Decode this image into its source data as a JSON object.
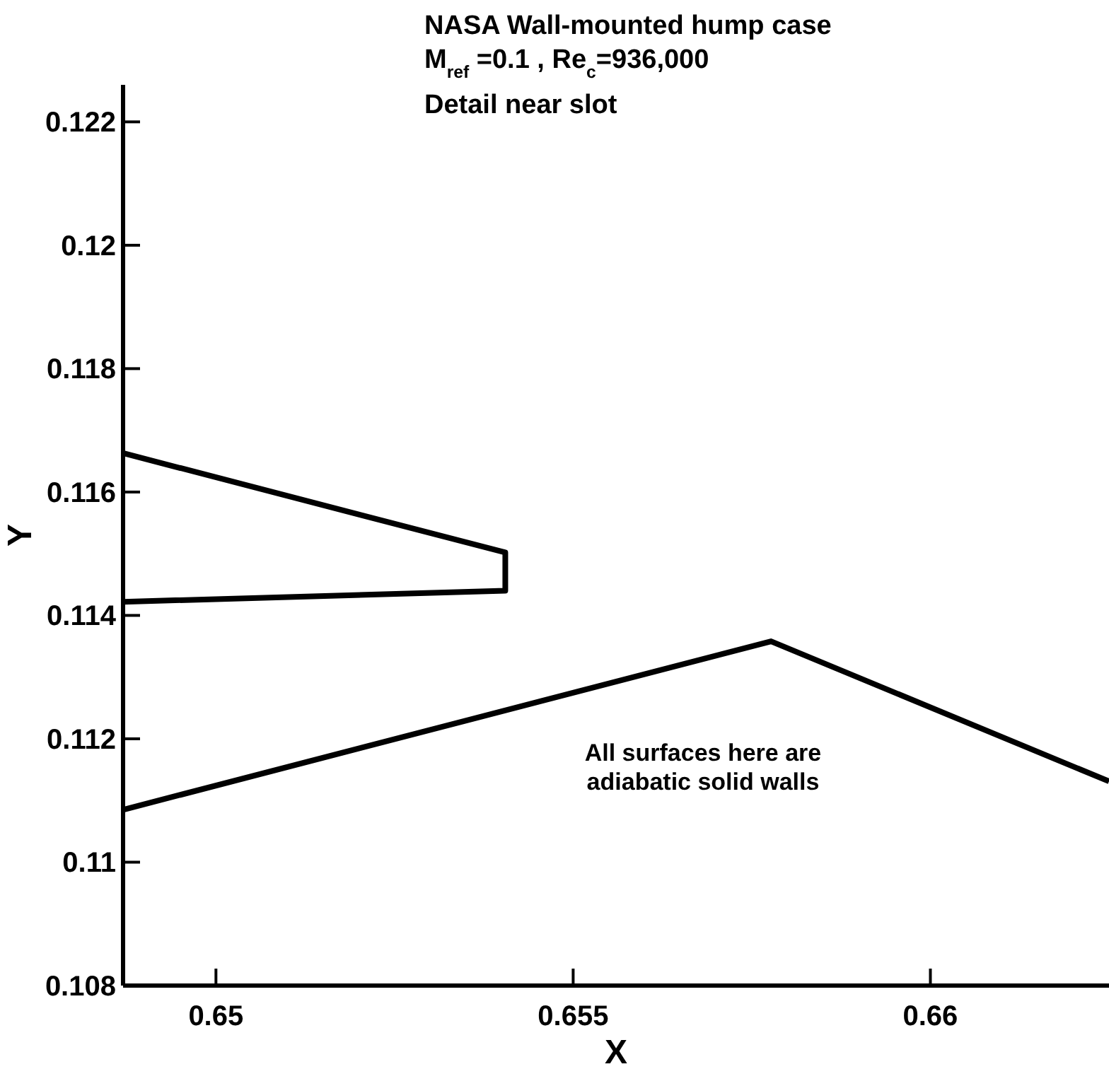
{
  "chart_data": {
    "type": "line",
    "title": "NASA Wall-mounted hump case",
    "subtitle": "M$_{ref}$ =0.1 , Re$_{c}$=936,000",
    "xlabel": "X",
    "ylabel": "Y",
    "annotations": [
      "Detail near slot",
      "All surfaces here are adiabatic solid walls"
    ],
    "xlim": [
      0.6487,
      0.6625
    ],
    "ylim": [
      0.108,
      0.1226
    ],
    "xticks": [
      0.65,
      0.655,
      0.66
    ],
    "yticks": [
      0.108,
      0.11,
      0.112,
      0.114,
      0.116,
      0.118,
      0.12,
      0.122
    ],
    "series": [
      {
        "color": "#000000",
        "x": [
          0.6487,
          0.65405,
          0.65405,
          0.6487
        ],
        "values": [
          0.11663,
          0.11502,
          0.1144,
          0.11422
        ]
      },
      {
        "color": "#000000",
        "x": [
          0.6487,
          0.65777,
          0.6625
        ],
        "values": [
          0.11085,
          0.11358,
          0.11131
        ]
      }
    ],
    "grid": false,
    "line_style": "solid"
  }
}
